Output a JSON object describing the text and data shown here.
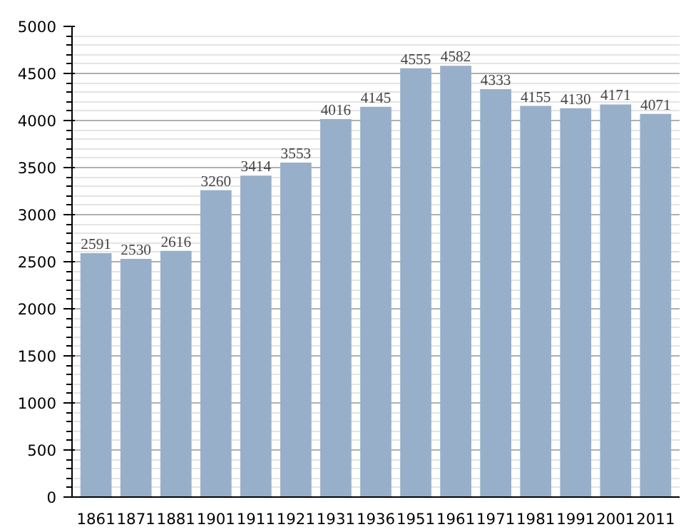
{
  "chart_data": {
    "type": "bar",
    "categories": [
      "1861",
      "1871",
      "1881",
      "1901",
      "1911",
      "1921",
      "1931",
      "1936",
      "1951",
      "1961",
      "1971",
      "1981",
      "1991",
      "2001",
      "2011"
    ],
    "values": [
      2591,
      2530,
      2616,
      3260,
      3414,
      3553,
      4016,
      4145,
      4555,
      4582,
      4333,
      4155,
      4130,
      4171,
      4071
    ],
    "color": "#98afc9",
    "ylim": [
      0,
      5000
    ],
    "yticks": [
      0,
      500,
      1000,
      1500,
      2000,
      2500,
      3000,
      3500,
      4000,
      4500,
      5000
    ],
    "grid": "y",
    "data_labels": true
  }
}
